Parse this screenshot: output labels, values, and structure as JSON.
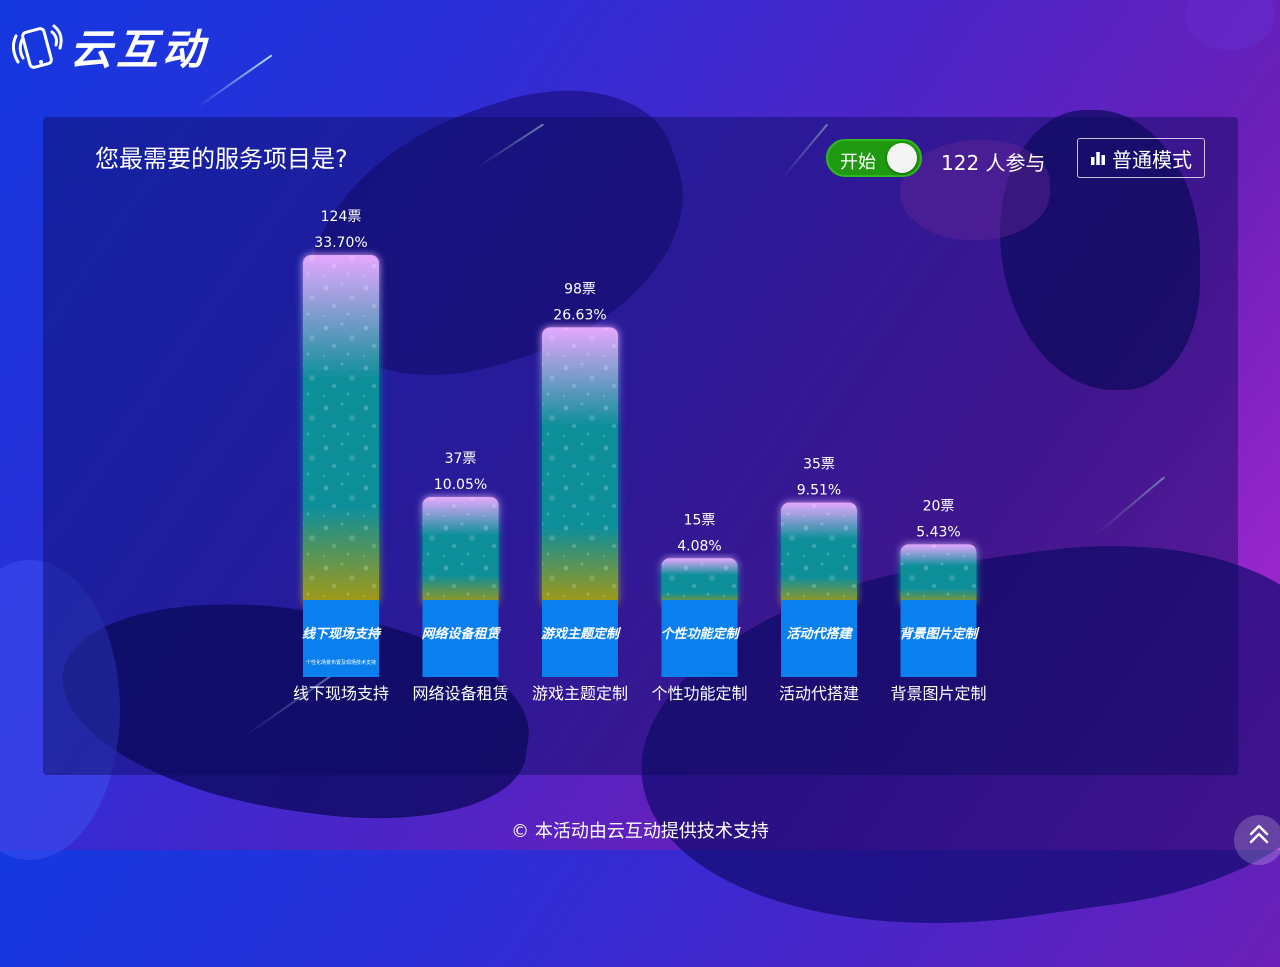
{
  "brand": {
    "name": "云互动",
    "icon": "phone-waves-icon"
  },
  "question": "您最需要的服务项目是?",
  "toggle": {
    "label": "开始",
    "state": "on"
  },
  "participants": "122 人参与",
  "mode_button": {
    "label": "普通模式",
    "icon": "bar-chart-icon"
  },
  "footer": "© 本活动由云互动提供技术支持",
  "scroll_top_icon": "double-chevron-up-icon",
  "chart_data": {
    "type": "bar",
    "categories": [
      "线下现场支持",
      "网络设备租赁",
      "游戏主题定制",
      "个性功能定制",
      "活动代搭建",
      "背景图片定制"
    ],
    "values": [
      124,
      37,
      98,
      15,
      35,
      20
    ],
    "vote_labels": [
      "124票",
      "37票",
      "98票",
      "15票",
      "35票",
      "20票"
    ],
    "percent_labels": [
      "33.70%",
      "10.05%",
      "26.63%",
      "4.08%",
      "9.51%",
      "5.43%"
    ],
    "card_titles": [
      "线下现场支持",
      "网络设备租赁",
      "游戏主题定制",
      "个性功能定制",
      "活动代搭建",
      "背景图片定制"
    ],
    "card_subtitles": [
      "个性化场景布置及现场技术支持",
      "",
      "",
      "",
      "",
      ""
    ],
    "colors": {
      "bar_top": "#e6a8ff",
      "bar_mid": "#0f8f9a",
      "bar_bottom": "#a89a10",
      "card": "#0a80ee"
    }
  }
}
